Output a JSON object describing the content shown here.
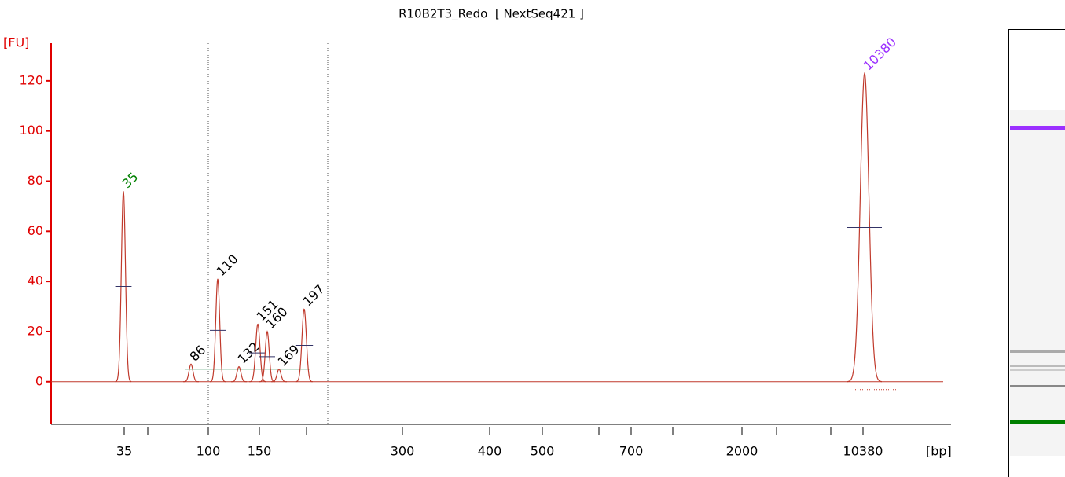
{
  "chart_data": {
    "type": "electropherogram",
    "title": "R10B2T3_Redo  [ NextSeq421 ]",
    "y_label": "[FU]",
    "x_label": "[bp]",
    "ylim": [
      -17,
      135
    ],
    "yticks": [
      0,
      20,
      40,
      60,
      80,
      100,
      120
    ],
    "axis_color": "#e00000",
    "trace_color": "#c0392b",
    "categories": [
      "35",
      null,
      "100",
      "150",
      null,
      "300",
      "400",
      "500",
      null,
      "700",
      null,
      "2000",
      null,
      null,
      "10380"
    ],
    "peaks": {
      "labels": [
        "35",
        "86",
        "110",
        "132",
        "151",
        "160",
        "169",
        "197",
        "10380"
      ],
      "values": [
        76,
        7,
        41,
        6,
        23,
        20,
        5,
        29,
        123
      ],
      "colors": [
        "#008000",
        "#000000",
        "#000000",
        "#000000",
        "#000000",
        "#000000",
        "#000000",
        "#000000",
        "#9b30ff"
      ]
    }
  }
}
